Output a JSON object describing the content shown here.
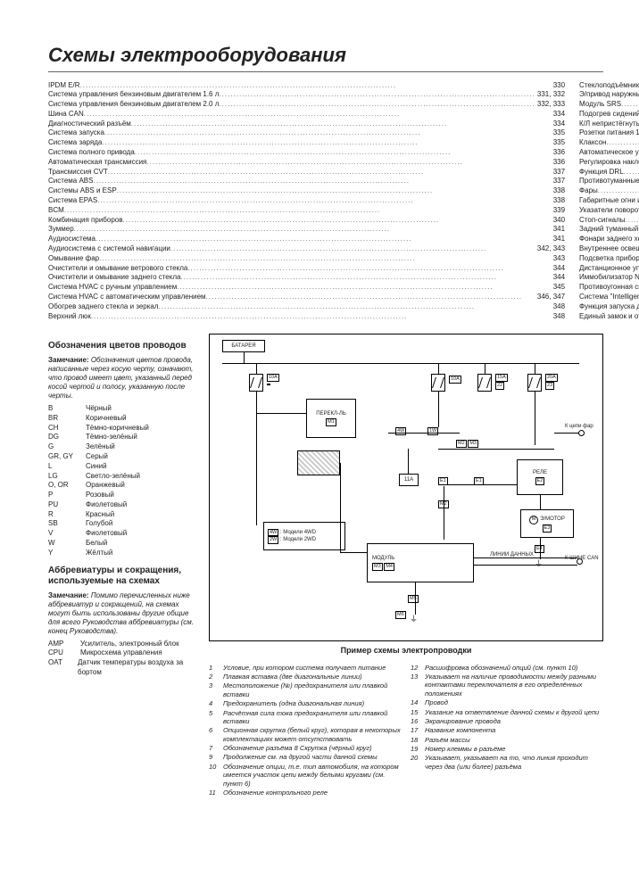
{
  "title": "Схемы электрооборудования",
  "toc_left": [
    {
      "label": "IPDM E/R",
      "page": "330"
    },
    {
      "label": "Система управления бензиновым двигателем 1.6 л",
      "page": "331, 332"
    },
    {
      "label": "Система управления бензиновым двигателем 2.0 л",
      "page": "332, 333"
    },
    {
      "label": "Шина CAN",
      "page": "334"
    },
    {
      "label": "Диагностический разъём",
      "page": "334"
    },
    {
      "label": "Система запуска",
      "page": "335"
    },
    {
      "label": "Система заряда",
      "page": "335"
    },
    {
      "label": "Система полного привода",
      "page": "336"
    },
    {
      "label": "Автоматическая трансмиссия",
      "page": "336"
    },
    {
      "label": "Трансмиссия CVT",
      "page": "337"
    },
    {
      "label": "Система ABS",
      "page": "337"
    },
    {
      "label": "Системы ABS и ESP",
      "page": "338"
    },
    {
      "label": "Система EPAS",
      "page": "338"
    },
    {
      "label": "BCM",
      "page": "339"
    },
    {
      "label": "Комбинация приборов",
      "page": "340"
    },
    {
      "label": "Зуммер",
      "page": "341"
    },
    {
      "label": "Аудиосистема",
      "page": "341"
    },
    {
      "label": "Аудиосистема с системой навигации",
      "page": "342, 343"
    },
    {
      "label": "Омывание фар",
      "page": "343"
    },
    {
      "label": "Очистители и омывание ветрового стекла",
      "page": "344"
    },
    {
      "label": "Очистители и омывание заднего стекла",
      "page": "344"
    },
    {
      "label": "Система HVAC с ручным управлением",
      "page": "345"
    },
    {
      "label": "Система HVAC с автоматическим управлением",
      "page": "346, 347"
    },
    {
      "label": "Обогрев заднего стекла и зеркал",
      "page": "348"
    },
    {
      "label": "Верхний люк",
      "page": "348"
    }
  ],
  "toc_right": [
    {
      "label": "Стеклоподъёмники",
      "page": "349"
    },
    {
      "label": "Э/привод наружных зеркал заднего вида",
      "page": "349"
    },
    {
      "label": "Модуль SRS",
      "page": "350"
    },
    {
      "label": "Подогрев сидений",
      "page": "351"
    },
    {
      "label": "К/Л непристёгнутых ремней безопасности",
      "page": "351"
    },
    {
      "label": "Розетки питания 12 В",
      "page": "352"
    },
    {
      "label": "Клаксон",
      "page": "352"
    },
    {
      "label": "Автоматическое управление наружным освещением",
      "page": "352"
    },
    {
      "label": "Регулировка наклона фар",
      "page": "353"
    },
    {
      "label": "Функция DRL",
      "page": "353"
    },
    {
      "label": "Противотуманные фары",
      "page": "354"
    },
    {
      "label": "Фары",
      "page": "354"
    },
    {
      "label": "Габаритные огни и освещение номерного знака",
      "page": "355"
    },
    {
      "label": "Указатели поворотов и аварийная сигнализация",
      "page": "355"
    },
    {
      "label": "Стоп-сигналы",
      "page": "356"
    },
    {
      "label": "Задний туманный фонарь",
      "page": "356"
    },
    {
      "label": "Фонари заднего хода и система помощи при парковке",
      "page": "357"
    },
    {
      "label": "Внутреннее освещение",
      "page": "358"
    },
    {
      "label": "Подсветка приборов",
      "page": "359, 360"
    },
    {
      "label": "Дистанционное управление",
      "page": "360"
    },
    {
      "label": "Иммобилизатор NATS",
      "page": "361"
    },
    {
      "label": "Противоугонная сигнализация",
      "page": "362"
    },
    {
      "label": "Система \"Intelligent Key\"",
      "page": "363, 364"
    },
    {
      "label": "Функция запуска двигателя системы \"Intelligent Key\"",
      "page": "365"
    },
    {
      "label": "Единый замок и отпирание двери задка",
      "page": "366"
    }
  ],
  "colors_heading": "Обозначения цветов проводов",
  "colors_note": "Обозначения цветов провода, написанные через косую черту, означают, что провод имеет цвет, указанный перед косой чертой и полосу, указанную после черты.",
  "note_label": "Замечание:",
  "colors": [
    {
      "code": "B",
      "name": "Чёрный"
    },
    {
      "code": "BR",
      "name": "Коричневый"
    },
    {
      "code": "CH",
      "name": "Тёмно-коричневый"
    },
    {
      "code": "DG",
      "name": "Тёмно-зелёный"
    },
    {
      "code": "G",
      "name": "Зелёный"
    },
    {
      "code": "GR, GY",
      "name": "Серый"
    },
    {
      "code": "L",
      "name": "Синий"
    },
    {
      "code": "LG",
      "name": "Светло-зелёный"
    },
    {
      "code": "O, OR",
      "name": "Оранжевый"
    },
    {
      "code": "P",
      "name": "Розовый"
    },
    {
      "code": "PU",
      "name": "Фиолетовый"
    },
    {
      "code": "R",
      "name": "Красный"
    },
    {
      "code": "SB",
      "name": "Голубой"
    },
    {
      "code": "V",
      "name": "Фиолетовый"
    },
    {
      "code": "W",
      "name": "Белый"
    },
    {
      "code": "Y",
      "name": "Жёлтый"
    }
  ],
  "abbr_heading": "Аббревиатуры и сокращения, используемые на схемах",
  "abbr_note": "Помимо перечисленных ниже аббревиатур и сокращений, на схемах могут быть использованы другие общие для всего Руководства аббревиатуры (см. конец Руководства).",
  "abbrs": [
    {
      "code": "AMP",
      "name": "Усилитель, электронный блок"
    },
    {
      "code": "CPU",
      "name": "Микросхема управления"
    },
    {
      "code": "OAT",
      "name": "Датчик температуры воздуха за бортом"
    }
  ],
  "diagram_caption": "Пример схемы электропроводки",
  "diagram_labels": {
    "battery": "БАТАРЕЯ",
    "switch": "ПЕРЕКЛ-ЛЬ",
    "relay": "РЕЛЕ",
    "motor": "Э/МОТОР",
    "module": "МОДУЛЬ",
    "data_lines": "ЛИНИИ ДАННЫХ",
    "to_headlamp": "К цепи фар",
    "to_can": "К ШИНЕ CAN",
    "models_4wd": "Модели 4WD",
    "models_2wd": "Модели 2WD",
    "fuse_10a": "10A",
    "fuse_15a": "15A",
    "fuse_20a": "20",
    "fuse_22": "22",
    "fuse_23": "23"
  },
  "legend_left": [
    {
      "n": "1",
      "t": "Условие, при котором система получает питание"
    },
    {
      "n": "2",
      "t": "Плавкая вставка (две диагональные линии)"
    },
    {
      "n": "3",
      "t": "Местоположение (№) предохранителя или плавкой вставки"
    },
    {
      "n": "4",
      "t": "Предохранитель (одна диагональная линия)"
    },
    {
      "n": "5",
      "t": "Расчётная сила тока предохранителя или плавкой вставки"
    },
    {
      "n": "6",
      "t": "Опционная скрутка (белый круг), которая в некоторых комплектациях может отсутствовать"
    },
    {
      "n": "7",
      "t": "Обозначение разъёма 8   Скрутка (чёрный круг)"
    },
    {
      "n": "9",
      "t": "Продолжение см. на другой части данной схемы"
    },
    {
      "n": "10",
      "t": "Обозначение опции, т.е. тип автомобиля, на котором имеется участок цепи между белыми кругами (см. пункт 6)"
    },
    {
      "n": "11",
      "t": "Обозначение контрольного реле"
    }
  ],
  "legend_right": [
    {
      "n": "12",
      "t": "Расшифровка обозначений опций (см. пункт 10)"
    },
    {
      "n": "13",
      "t": "Указывает на наличие проводимости между разными контактами переключателя в его определённых положениях"
    },
    {
      "n": "14",
      "t": "Провод"
    },
    {
      "n": "15",
      "t": "Указание на ответвление данной схемы к другой цепи"
    },
    {
      "n": "16",
      "t": "Экранирование провода"
    },
    {
      "n": "17",
      "t": "Название компонента"
    },
    {
      "n": "18",
      "t": "Разъём массы"
    },
    {
      "n": "19",
      "t": "Номер клеммы в разъёме"
    },
    {
      "n": "20",
      "t": "Указывает, указывает на то, что линия проходит через два (или более) разъёма"
    }
  ]
}
